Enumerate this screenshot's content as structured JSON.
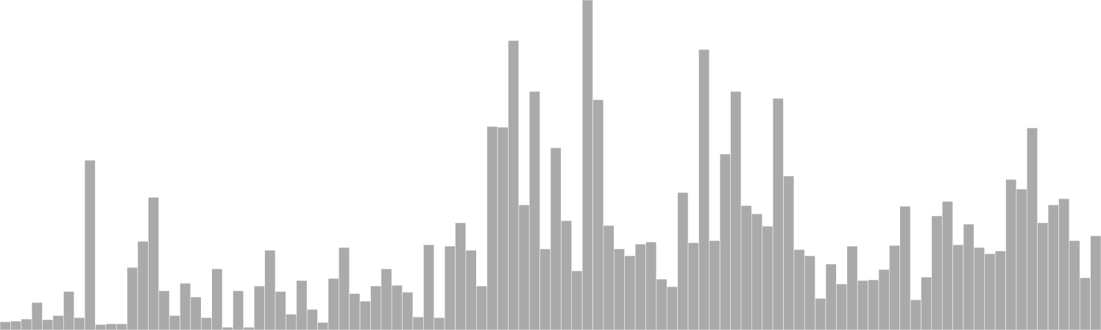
{
  "chart_data": {
    "type": "bar",
    "title": "",
    "xlabel": "",
    "ylabel": "",
    "ylim": [
      0,
      480
    ],
    "grid": false,
    "legend": "none",
    "bar_color": "#aaaaaa",
    "bar_stroke": "#ffffff",
    "values": [
      12,
      13,
      16,
      40,
      15,
      21,
      56,
      18,
      247,
      8,
      9,
      9,
      91,
      129,
      193,
      57,
      21,
      68,
      48,
      18,
      89,
      4,
      57,
      4,
      64,
      116,
      56,
      23,
      72,
      30,
      11,
      75,
      120,
      53,
      42,
      64,
      89,
      65,
      55,
      19,
      124,
      18,
      122,
      156,
      116,
      64,
      296,
      295,
      421,
      182,
      347,
      118,
      265,
      159,
      86,
      480,
      335,
      152,
      118,
      108,
      125,
      128,
      74,
      63,
      200,
      127,
      408,
      130,
      256,
      347,
      181,
      169,
      151,
      337,
      224,
      117,
      108,
      46,
      96,
      67,
      122,
      72,
      73,
      88,
      123,
      180,
      44,
      77,
      166,
      187,
      124,
      154,
      120,
      111,
      115,
      219,
      205,
      294,
      156,
      182,
      191,
      130,
      76,
      137
    ]
  }
}
